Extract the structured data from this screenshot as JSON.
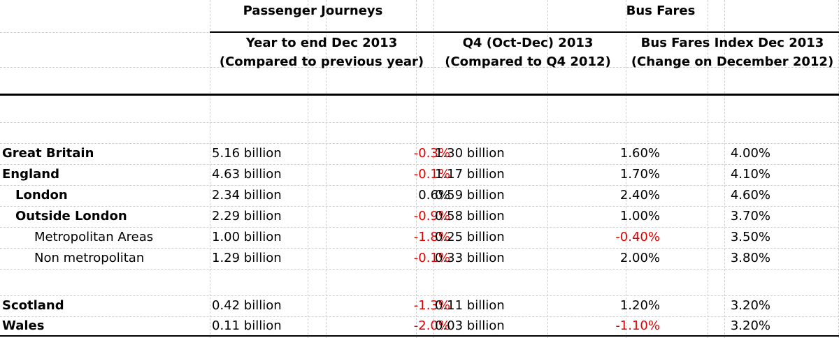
{
  "header": {
    "groups": [
      "Passenger Journeys",
      "Bus Fares"
    ],
    "columns": [
      [
        "Year to end Dec 2013",
        "(Compared to previous year)"
      ],
      [
        "Q4 (Oct-Dec) 2013",
        "(Compared to Q4 2012)"
      ],
      [
        "Bus Fares Index Dec 2013",
        "(Change on December 2012)"
      ]
    ]
  },
  "table": {
    "rows": [
      [
        "Great Britain",
        "5.16 billion",
        "-0.3%",
        "1.30 billion",
        "1.60%",
        "4.00%"
      ],
      [
        "England",
        "4.63 billion",
        "-0.1%",
        "1.17 billion",
        "1.70%",
        "4.10%"
      ],
      [
        "London",
        "2.34 billion",
        "0.6%",
        "0.59 billion",
        "2.40%",
        "4.60%"
      ],
      [
        "Outside London",
        "2.29 billion",
        "-0.9%",
        "0.58 billion",
        "1.00%",
        "3.70%"
      ],
      [
        "Metropolitan Areas",
        "1.00 billion",
        "-1.8%",
        "0.25 billion",
        "-0.40%",
        "3.50%"
      ],
      [
        "Non metropolitan",
        "1.29 billion",
        "-0.1%",
        "0.33 billion",
        "2.00%",
        "3.80%"
      ],
      [
        "Scotland",
        "0.42 billion",
        "-1.3%",
        "0.11 billion",
        "1.20%",
        "3.20%"
      ],
      [
        "Wales",
        "0.11 billion",
        "-2.0%",
        "0.03 billion",
        "-1.10%",
        "3.20%"
      ]
    ],
    "indent": [
      0,
      0,
      1,
      1,
      2,
      2,
      0,
      0
    ],
    "bold": [
      true,
      true,
      true,
      true,
      false,
      false,
      true,
      true
    ],
    "negative_color": "#e00000"
  }
}
